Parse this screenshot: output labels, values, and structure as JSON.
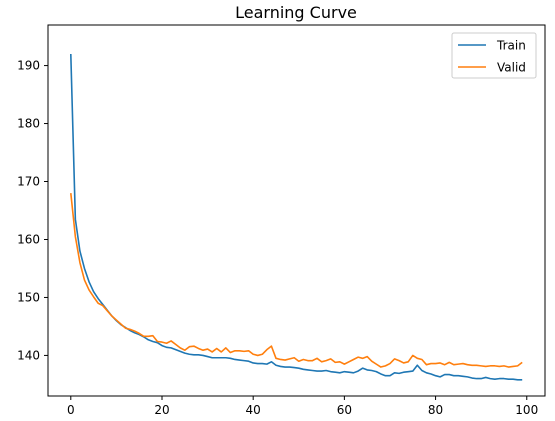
{
  "chart_data": {
    "type": "line",
    "title": "Learning Curve",
    "xlabel": "",
    "ylabel": "",
    "xlim": [
      -5,
      104
    ],
    "ylim": [
      133,
      197
    ],
    "x_ticks": [
      0,
      20,
      40,
      60,
      80,
      100
    ],
    "y_ticks": [
      140,
      150,
      160,
      170,
      180,
      190
    ],
    "grid": false,
    "legend_position": "top-right",
    "x": [
      0,
      1,
      2,
      3,
      4,
      5,
      6,
      7,
      8,
      9,
      10,
      11,
      12,
      13,
      14,
      15,
      16,
      17,
      18,
      19,
      20,
      21,
      22,
      23,
      24,
      25,
      26,
      27,
      28,
      29,
      30,
      31,
      32,
      33,
      34,
      35,
      36,
      37,
      38,
      39,
      40,
      41,
      42,
      43,
      44,
      45,
      46,
      47,
      48,
      49,
      50,
      51,
      52,
      53,
      54,
      55,
      56,
      57,
      58,
      59,
      60,
      61,
      62,
      63,
      64,
      65,
      66,
      67,
      68,
      69,
      70,
      71,
      72,
      73,
      74,
      75,
      76,
      77,
      78,
      79,
      80,
      81,
      82,
      83,
      84,
      85,
      86,
      87,
      88,
      89,
      90,
      91,
      92,
      93,
      94,
      95,
      96,
      97,
      98,
      99
    ],
    "series": [
      {
        "name": "Train",
        "color": "#1f77b4",
        "values": [
          192.0,
          163.5,
          158.0,
          155.0,
          152.7,
          151.0,
          149.8,
          148.8,
          147.8,
          146.8,
          146.0,
          145.3,
          144.8,
          144.3,
          143.9,
          143.6,
          143.2,
          142.7,
          142.4,
          142.2,
          141.7,
          141.4,
          141.3,
          141.0,
          140.7,
          140.4,
          140.2,
          140.1,
          140.1,
          140.0,
          139.8,
          139.6,
          139.6,
          139.6,
          139.6,
          139.5,
          139.3,
          139.2,
          139.1,
          139.0,
          138.7,
          138.6,
          138.6,
          138.5,
          138.9,
          138.3,
          138.1,
          138.0,
          138.0,
          137.9,
          137.8,
          137.6,
          137.5,
          137.4,
          137.3,
          137.3,
          137.4,
          137.2,
          137.1,
          137.0,
          137.2,
          137.1,
          137.0,
          137.3,
          137.8,
          137.5,
          137.4,
          137.2,
          136.8,
          136.5,
          136.5,
          137.0,
          136.9,
          137.1,
          137.2,
          137.3,
          138.3,
          137.4,
          137.0,
          136.8,
          136.5,
          136.3,
          136.7,
          136.7,
          136.5,
          136.5,
          136.4,
          136.3,
          136.1,
          136.0,
          136.0,
          136.2,
          136.0,
          135.9,
          136.0,
          136.0,
          135.9,
          135.9,
          135.8,
          135.8
        ]
      },
      {
        "name": "Valid",
        "color": "#ff7f0e",
        "values": [
          168.0,
          160.5,
          156.0,
          153.0,
          151.3,
          150.1,
          149.0,
          148.6,
          147.7,
          146.8,
          146.1,
          145.4,
          144.7,
          144.5,
          144.2,
          143.8,
          143.3,
          143.3,
          143.4,
          142.4,
          142.3,
          142.1,
          142.5,
          141.9,
          141.3,
          140.9,
          141.5,
          141.6,
          141.2,
          140.9,
          141.1,
          140.6,
          141.2,
          140.6,
          141.3,
          140.5,
          140.8,
          140.8,
          140.7,
          140.8,
          140.2,
          140.0,
          140.2,
          141.0,
          141.6,
          139.5,
          139.3,
          139.2,
          139.4,
          139.6,
          139.0,
          139.3,
          139.1,
          139.1,
          139.5,
          138.9,
          139.1,
          139.4,
          138.8,
          138.9,
          138.5,
          138.9,
          139.3,
          139.7,
          139.5,
          139.8,
          139.0,
          138.5,
          138.0,
          138.2,
          138.6,
          139.4,
          139.1,
          138.7,
          138.9,
          140.0,
          139.5,
          139.3,
          138.4,
          138.6,
          138.6,
          138.7,
          138.4,
          138.8,
          138.4,
          138.5,
          138.6,
          138.4,
          138.3,
          138.3,
          138.2,
          138.1,
          138.2,
          138.2,
          138.1,
          138.2,
          138.0,
          138.1,
          138.2,
          138.8
        ]
      }
    ]
  }
}
